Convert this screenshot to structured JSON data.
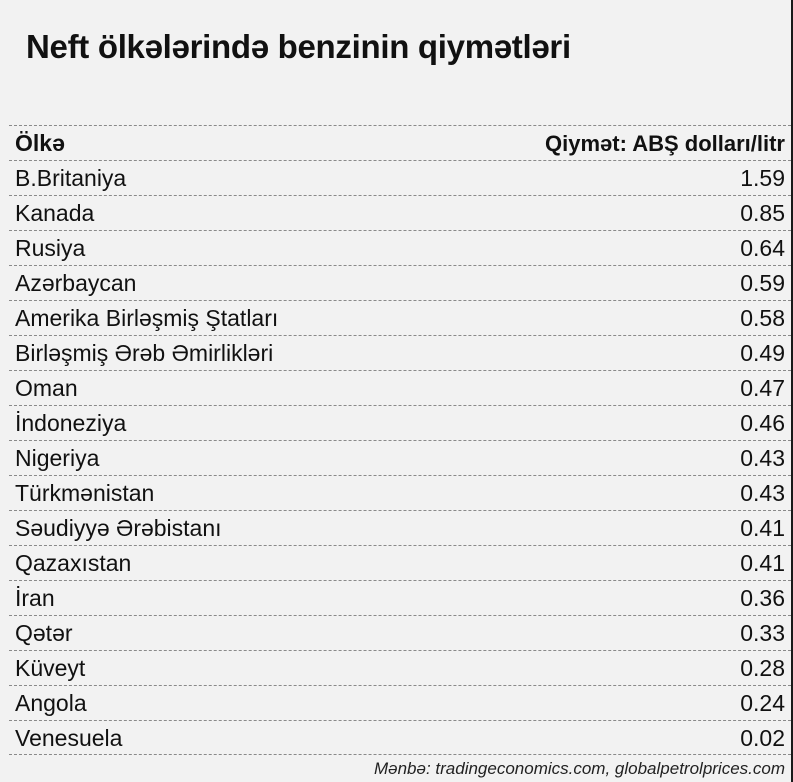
{
  "title": "Neft ölkələrində benzinin qiymətləri",
  "header": {
    "country_label": "Ölkə",
    "price_label": "Qiymət:  ABŞ dolları/litr"
  },
  "source": "Mənbə: tradingeconomics.com, globalpetrolprices.com",
  "chart_data": {
    "type": "table",
    "title": "Neft ölkələrində benzinin qiymətləri",
    "columns": [
      "Ölkə",
      "Qiymət:  ABŞ dolları/litr"
    ],
    "rows": [
      {
        "country": "B.Britaniya",
        "price": "1.59"
      },
      {
        "country": "Kanada",
        "price": "0.85"
      },
      {
        "country": "Rusiya",
        "price": "0.64"
      },
      {
        "country": "Azərbaycan",
        "price": "0.59"
      },
      {
        "country": "Amerika Birləşmiş Ştatları",
        "price": "0.58"
      },
      {
        "country": "Birləşmiş Ərəb Əmirlikləri",
        "price": "0.49"
      },
      {
        "country": "Oman",
        "price": "0.47"
      },
      {
        "country": "İndoneziya",
        "price": "0.46"
      },
      {
        "country": "Nigeriya",
        "price": "0.43"
      },
      {
        "country": "Türkmənistan",
        "price": "0.43"
      },
      {
        "country": "Səudiyyə Ərəbistanı",
        "price": "0.41"
      },
      {
        "country": "Qazaxıstan",
        "price": "0.41"
      },
      {
        "country": "İran",
        "price": "0.36"
      },
      {
        "country": "Qətər",
        "price": "0.33"
      },
      {
        "country": "Küveyt",
        "price": "0.28"
      },
      {
        "country": "Angola",
        "price": "0.24"
      },
      {
        "country": "Venesuela",
        "price": "0.02"
      }
    ]
  }
}
